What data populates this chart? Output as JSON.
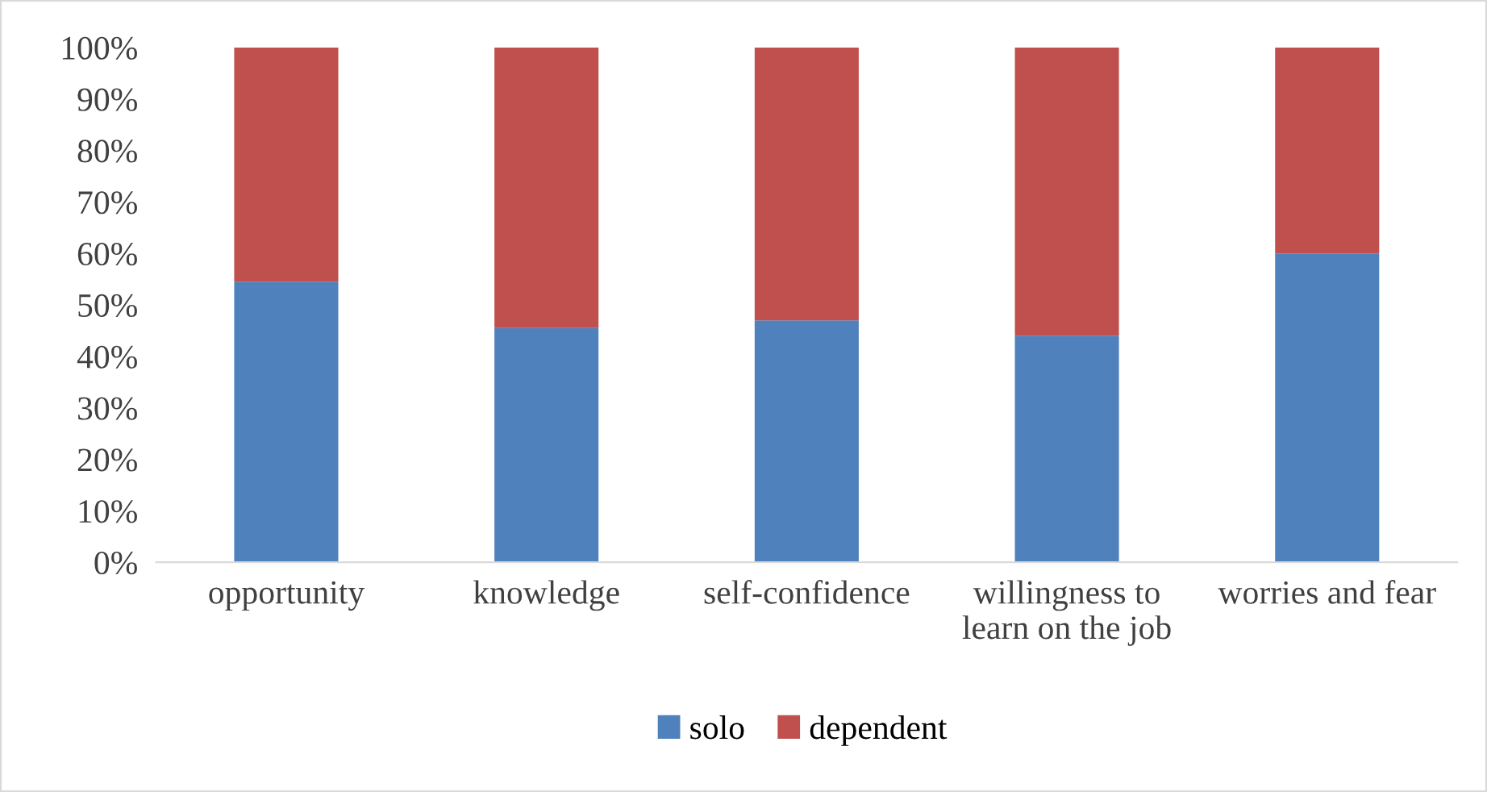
{
  "chart_data": {
    "type": "bar",
    "stacked": true,
    "categories": [
      "opportunity",
      "knowledge",
      "self-confidence",
      "willingness to\nlearn on the job",
      "worries and fear"
    ],
    "series": [
      {
        "name": "solo",
        "color": "#4f81bd",
        "values": [
          54.5,
          45.5,
          47,
          44,
          60
        ]
      },
      {
        "name": "dependent",
        "color": "#c0504d",
        "values": [
          45.5,
          54.5,
          53,
          56,
          40
        ]
      }
    ],
    "ylim": [
      0,
      100
    ],
    "yticks": [
      {
        "value": 0,
        "label": "0%"
      },
      {
        "value": 10,
        "label": "10%"
      },
      {
        "value": 20,
        "label": "20%"
      },
      {
        "value": 30,
        "label": "30%"
      },
      {
        "value": 40,
        "label": "40%"
      },
      {
        "value": 50,
        "label": "50%"
      },
      {
        "value": 60,
        "label": "60%"
      },
      {
        "value": 70,
        "label": "70%"
      },
      {
        "value": 80,
        "label": "80%"
      },
      {
        "value": 90,
        "label": "90%"
      },
      {
        "value": 100,
        "label": "100%"
      }
    ],
    "grid": false,
    "legend": "bottom"
  }
}
